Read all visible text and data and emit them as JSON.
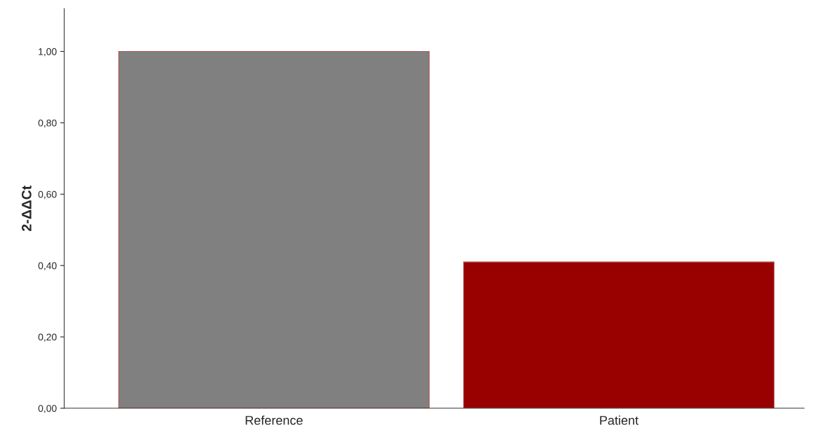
{
  "chart_data": {
    "type": "bar",
    "ylabel": "2-ΔΔCt",
    "categories": [
      "Reference",
      "Patient"
    ],
    "values": [
      1.0,
      0.41
    ],
    "colors": [
      "#808080",
      "#990000"
    ],
    "ylim": [
      0,
      1.12
    ],
    "yticks": [
      {
        "value": 0,
        "label": "0,00"
      },
      {
        "value": 0.2,
        "label": "0,20"
      },
      {
        "value": 0.4,
        "label": "0,40"
      },
      {
        "value": 0.6,
        "label": "0,60"
      },
      {
        "value": 0.8,
        "label": "0,80"
      },
      {
        "value": 1.0,
        "label": "1,00"
      }
    ],
    "grid": false,
    "legend": false
  }
}
